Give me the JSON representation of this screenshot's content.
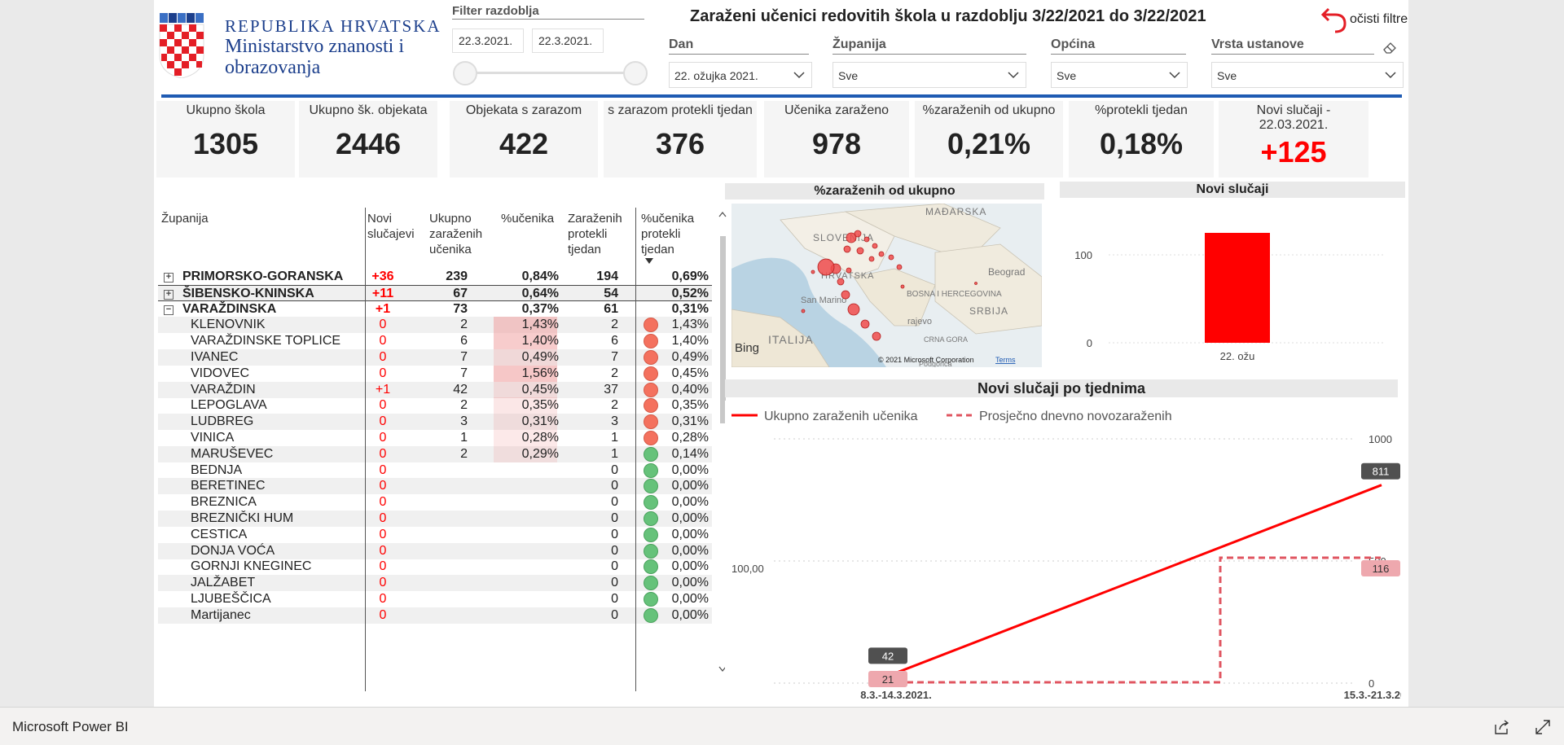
{
  "header": {
    "logo_line1": "REPUBLIKA HRVATSKA",
    "logo_line2": "Ministarstvo znanosti i obrazovanja",
    "filter_title": "Filter razdoblja",
    "date_from": "22.3.2021.",
    "date_to": "22.3.2021.",
    "main_title": "Zaraženi učenici redovitih škola u razdoblju 3/22/2021 do 3/22/2021",
    "clear_filters": "očisti filtre"
  },
  "slicers": [
    {
      "label": "Dan",
      "value": "22. ožujka 2021."
    },
    {
      "label": "Županija",
      "value": "Sve"
    },
    {
      "label": "Općina",
      "value": "Sve"
    },
    {
      "label": "Vrsta ustanove",
      "value": "Sve"
    }
  ],
  "cards": [
    {
      "title": "Ukupno škola",
      "value": "1305"
    },
    {
      "title": "Ukupno šk. objekata",
      "value": "2446"
    },
    {
      "title": "Objekata s zarazom",
      "value": "422"
    },
    {
      "title": "s zarazom protekli tjedan",
      "value": "376"
    },
    {
      "title": "Učenika zaraženo",
      "value": "978"
    },
    {
      "title": "%zaraženih od ukupno",
      "value": "0,21%"
    },
    {
      "title": "%protekli tjedan",
      "value": "0,18%"
    },
    {
      "title": "Novi slučaji - 22.03.2021.",
      "value": "+125"
    }
  ],
  "table": {
    "headers": {
      "name": "Županija",
      "new": "Novi slučajevi",
      "total": "Ukupno zaraženih učenika",
      "pct": "%učenika",
      "week": "Zaraženih protekli tjedan",
      "week_pct": "%učenika protekli tjedan"
    },
    "rows": [
      {
        "name": "PRIMORSKO-GORANSKA",
        "new": "+36",
        "total": "239",
        "pct": "0,84%",
        "week": "194",
        "week_pct": "0,69%"
      },
      {
        "name": "ŠIBENSKO-KNINSKA",
        "new": "+11",
        "total": "67",
        "pct": "0,64%",
        "week": "54",
        "week_pct": "0,52%"
      },
      {
        "name": "VARAŽDINSKA",
        "new": "+1",
        "total": "73",
        "pct": "0,37%",
        "week": "61",
        "week_pct": "0,31%"
      },
      {
        "name": "KLENOVNIK",
        "new": "0",
        "total": "2",
        "pct": "1,43%",
        "week": "2",
        "week_pct": "1,43%",
        "status": "red"
      },
      {
        "name": "VARAŽDINSKE TOPLICE",
        "new": "0",
        "total": "6",
        "pct": "1,40%",
        "week": "6",
        "week_pct": "1,40%",
        "status": "red"
      },
      {
        "name": "IVANEC",
        "new": "0",
        "total": "7",
        "pct": "0,49%",
        "week": "7",
        "week_pct": "0,49%",
        "status": "red"
      },
      {
        "name": "VIDOVEC",
        "new": "0",
        "total": "7",
        "pct": "1,56%",
        "week": "2",
        "week_pct": "0,45%",
        "status": "red"
      },
      {
        "name": "VARAŽDIN",
        "new": "+1",
        "total": "42",
        "pct": "0,45%",
        "week": "37",
        "week_pct": "0,40%",
        "status": "red"
      },
      {
        "name": "LEPOGLAVA",
        "new": "0",
        "total": "2",
        "pct": "0,35%",
        "week": "2",
        "week_pct": "0,35%",
        "status": "red"
      },
      {
        "name": "LUDBREG",
        "new": "0",
        "total": "3",
        "pct": "0,31%",
        "week": "3",
        "week_pct": "0,31%",
        "status": "red"
      },
      {
        "name": "VINICA",
        "new": "0",
        "total": "1",
        "pct": "0,28%",
        "week": "1",
        "week_pct": "0,28%",
        "status": "red"
      },
      {
        "name": "MARUŠEVEC",
        "new": "0",
        "total": "2",
        "pct": "0,29%",
        "week": "1",
        "week_pct": "0,14%",
        "status": "green"
      },
      {
        "name": "BEDNJA",
        "new": "0",
        "total": "",
        "pct": "",
        "week": "0",
        "week_pct": "0,00%",
        "status": "green"
      },
      {
        "name": "BERETINEC",
        "new": "0",
        "total": "",
        "pct": "",
        "week": "0",
        "week_pct": "0,00%",
        "status": "green"
      },
      {
        "name": "BREZNICA",
        "new": "0",
        "total": "",
        "pct": "",
        "week": "0",
        "week_pct": "0,00%",
        "status": "green"
      },
      {
        "name": "BREZNIČKI HUM",
        "new": "0",
        "total": "",
        "pct": "",
        "week": "0",
        "week_pct": "0,00%",
        "status": "green"
      },
      {
        "name": "CESTICA",
        "new": "0",
        "total": "",
        "pct": "",
        "week": "0",
        "week_pct": "0,00%",
        "status": "green"
      },
      {
        "name": "DONJA VOĆA",
        "new": "0",
        "total": "",
        "pct": "",
        "week": "0",
        "week_pct": "0,00%",
        "status": "green"
      },
      {
        "name": "GORNJI KNEGINEC",
        "new": "0",
        "total": "",
        "pct": "",
        "week": "0",
        "week_pct": "0,00%",
        "status": "green"
      },
      {
        "name": "JALŽABET",
        "new": "0",
        "total": "",
        "pct": "",
        "week": "0",
        "week_pct": "0,00%",
        "status": "green"
      },
      {
        "name": "LJUBEŠČICA",
        "new": "0",
        "total": "",
        "pct": "",
        "week": "0",
        "week_pct": "0,00%",
        "status": "green"
      },
      {
        "name": "Martijanec",
        "new": "0",
        "total": "",
        "pct": "",
        "week": "0",
        "week_pct": "0,00%",
        "status": "green"
      }
    ]
  },
  "map": {
    "title": "%zaraženih od ukupno",
    "labels": [
      "MAĐARSKA",
      "SLOVENIJA",
      "HRVATSKA",
      "San Marino",
      "BOSNA I HERCEGOVINA",
      "Beograd",
      "SRBIJA",
      "ITALIJA",
      "rajevo",
      "CRNA GORA",
      "Podgorica"
    ],
    "provider": "Bing",
    "copyright": "© 2021 Microsoft Corporation",
    "terms": "Terms"
  },
  "chart_data": [
    {
      "type": "bar",
      "title": "Novi slučaji",
      "categories": [
        "22. ožu"
      ],
      "values": [
        125
      ],
      "ylim": [
        0,
        125
      ],
      "yticks": [
        0,
        100
      ],
      "color": "#ff0000"
    },
    {
      "type": "line",
      "title": "Novi slučaji po tjednima",
      "categories": [
        "8.3.-14.3.2021.",
        "15.3.-21.3.2021."
      ],
      "series": [
        {
          "name": "Ukupno zaraženih učenika",
          "values": [
            42,
            811
          ],
          "style": "solid",
          "color": "#ff0000",
          "axis": "right"
        },
        {
          "name": "Prosječno dnevno novozaraženih",
          "values": [
            21,
            116
          ],
          "style": "dashed-step",
          "color": "#e05560",
          "axis": "left"
        }
      ],
      "right_axis": {
        "ticks": [
          0,
          500,
          1000
        ],
        "ylim": [
          0,
          1000
        ]
      },
      "left_axis": {
        "ticks": [
          "100,00"
        ]
      }
    }
  ],
  "bottombar": {
    "brand": "Microsoft Power BI"
  }
}
